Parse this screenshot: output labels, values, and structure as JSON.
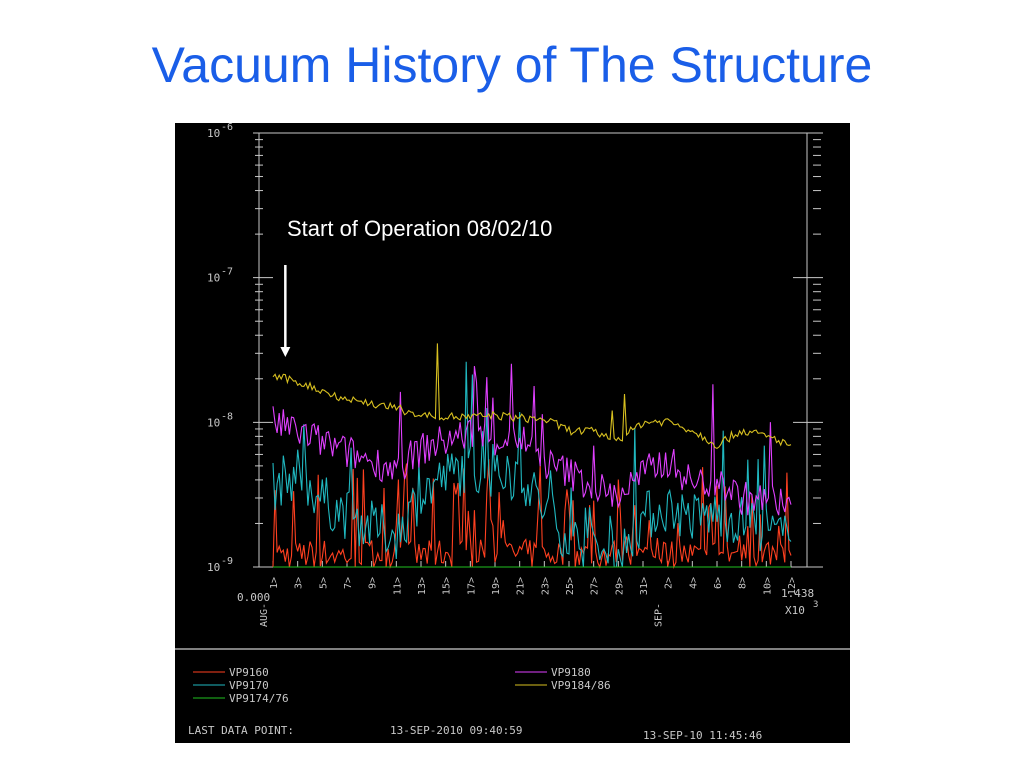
{
  "slide": {
    "title": "Vacuum History of The Structure"
  },
  "colors": {
    "background": "#000000",
    "axis": "#c8c8c8",
    "title": "#1a5ee8",
    "annotation": "#ffffff"
  },
  "chart_data": {
    "type": "line",
    "title": "",
    "xlabel": "",
    "ylabel": "",
    "y_scale": "log",
    "ylim": [
      1e-09,
      1e-06
    ],
    "y_tick_labels": [
      {
        "value": 1e-06,
        "base": "10",
        "exp": "-6"
      },
      {
        "value": 1e-07,
        "base": "10",
        "exp": "-7"
      },
      {
        "value": 1e-08,
        "base": "10",
        "exp": "-8"
      },
      {
        "value": 1e-09,
        "base": "10",
        "exp": "-9"
      }
    ],
    "x_start_label": "0.000",
    "x_end_label": "1.438",
    "x_multiplier_base": "X10",
    "x_multiplier_exp": "3",
    "x_day_ticks": [
      "1>",
      "3>",
      "5>",
      "7>",
      "9>",
      "11>",
      "13>",
      "15>",
      "17>",
      "19>",
      "21>",
      "23>",
      "25>",
      "27>",
      "29>",
      "31>",
      "2>",
      "4>",
      "6>",
      "8>",
      "10>",
      "12>"
    ],
    "x_month_labels": [
      {
        "label": "AUG-",
        "at_tick": 0
      },
      {
        "label": "SEP-",
        "at_tick": 16
      }
    ],
    "annotation": {
      "text": "Start of Operation 08/02/10",
      "points_to_day": 2
    },
    "series": [
      {
        "name": "VP9160",
        "color": "#ff4020",
        "values": [
          1.25e-09,
          1.2e-09,
          1.25e-09,
          1.2e-09,
          1.25e-09,
          1.25e-09,
          1.2e-09,
          1.25e-09,
          1.25e-09,
          1.2e-09,
          1.25e-09,
          1.2e-09,
          1.25e-09,
          1.2e-09,
          1.25e-09,
          1.2e-09,
          1.25e-09,
          1.2e-09,
          1.25e-09,
          1.2e-09,
          1.25e-09,
          1.2e-09
        ]
      },
      {
        "name": "VP9170",
        "color": "#20b8c0",
        "values": [
          3.6e-09,
          4.5e-09,
          2.9e-09,
          2.3e-09,
          1.9e-09,
          1.7e-09,
          3.2e-09,
          4.2e-09,
          5e-09,
          4e-09,
          4.5e-09,
          2.5e-09,
          1.6e-09,
          1.3e-09,
          1.15e-09,
          2.2e-09,
          2.6e-09,
          2.2e-09,
          2.3e-09,
          2.1e-09,
          1.8e-09,
          1.5e-09
        ]
      },
      {
        "name": "VP9174/76",
        "color": "#20c020",
        "values": [
          1e-09,
          1e-09,
          1e-09,
          1e-09,
          1e-09,
          1e-09,
          1e-09,
          1e-09,
          1e-09,
          1e-09,
          1e-09,
          1e-09,
          1e-09,
          1e-09,
          1e-09,
          1e-09,
          1e-09,
          1e-09,
          1e-09,
          1e-09,
          1e-09,
          1e-09
        ]
      },
      {
        "name": "VP9180",
        "color": "#e040ff",
        "values": [
          1e-08,
          8.7e-09,
          7.3e-09,
          6.2e-09,
          5.4e-09,
          4.8e-09,
          6.5e-09,
          7.5e-09,
          8.5e-09,
          7.5e-09,
          8e-09,
          5.2e-09,
          4.5e-09,
          3.6e-09,
          3.1e-09,
          4.4e-09,
          5.5e-09,
          3.8e-09,
          3.9e-09,
          3e-09,
          2.9e-09,
          2.7e-09
        ]
      },
      {
        "name": "VP9184/86",
        "color": "#d8c020",
        "values": [
          2.1e-08,
          1.9e-08,
          1.65e-08,
          1.45e-08,
          1.35e-08,
          1.25e-08,
          1.12e-08,
          1.1e-08,
          1.08e-08,
          1.12e-08,
          1.07e-08,
          1.05e-08,
          8.8e-09,
          8.6e-09,
          7.5e-09,
          1e-08,
          1.02e-08,
          8.8e-09,
          7e-09,
          8.8e-09,
          8e-09,
          7e-09
        ]
      }
    ],
    "legend": {
      "placement": "bottom",
      "columns": [
        [
          "VP9160",
          "VP9170",
          "VP9174/76"
        ],
        [
          "VP9180",
          "VP9184/86"
        ]
      ]
    },
    "footer": {
      "last_data_label": "LAST DATA POINT:",
      "last_data_value": "13-SEP-2010 09:40:59",
      "timestamp": "13-SEP-10 11:45:46"
    }
  }
}
